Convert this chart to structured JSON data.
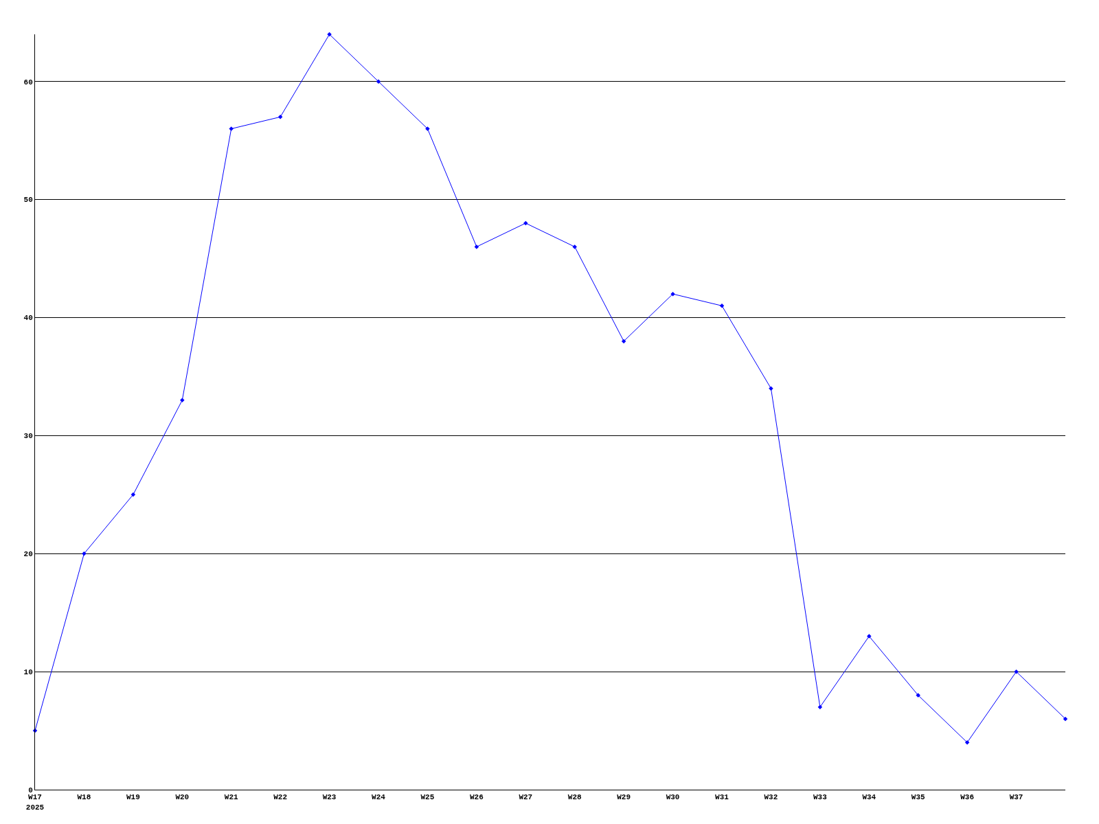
{
  "chart_data": {
    "type": "line",
    "categories": [
      "W17\n2025",
      "W18",
      "W19",
      "W20",
      "W21",
      "W22",
      "W23",
      "W24",
      "W25",
      "W26",
      "W27",
      "W28",
      "W29",
      "W30",
      "W31",
      "W32",
      "W33",
      "W34",
      "W35",
      "W36",
      "W37",
      null
    ],
    "series": [
      {
        "color": "#0000ff",
        "values": [
          5,
          20,
          25,
          33,
          56,
          57,
          64,
          60,
          56,
          46,
          48,
          46,
          38,
          42,
          41,
          34,
          7,
          13,
          8,
          4,
          10,
          6
        ]
      }
    ],
    "ylim": [
      0,
      64
    ],
    "yticks": [
      0,
      10,
      20,
      30,
      40,
      50,
      60
    ],
    "grid": "y",
    "legend": false,
    "marker": "diamond",
    "line_style": "solid"
  }
}
